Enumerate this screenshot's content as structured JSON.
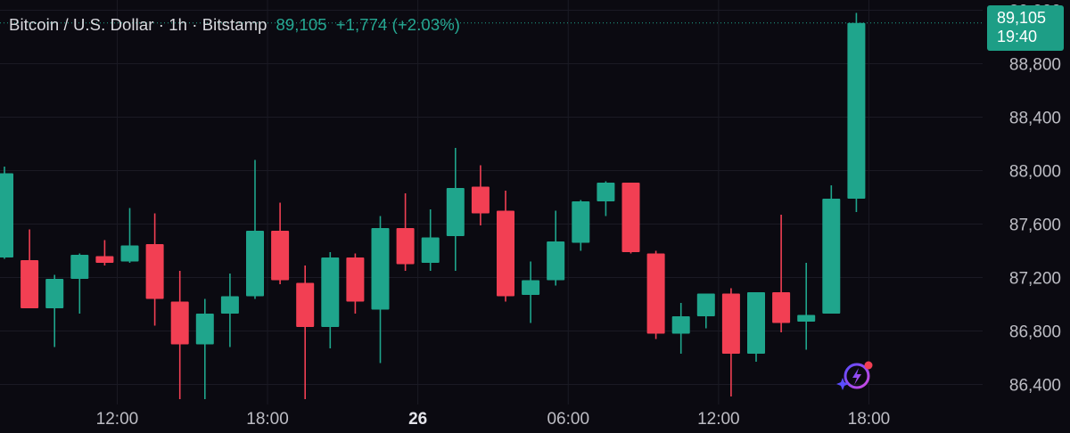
{
  "header": {
    "symbol": "Bitcoin / U.S. Dollar · 1h · Bitstamp",
    "last": "89,105",
    "change": "+1,774 (+2.03%)"
  },
  "price_tag": {
    "price": "89,105",
    "time": "19:40"
  },
  "colors": {
    "up": "#1fa58c",
    "down": "#f23f53",
    "grid": "#1b1a24",
    "text": "#bdbdc4",
    "background": "#0b0a11"
  },
  "chart_data": {
    "type": "candlestick",
    "title": "Bitcoin / U.S. Dollar · 1h · Bitstamp",
    "x_ticks": [
      {
        "index": 4.5,
        "label": "12:00",
        "bold": false
      },
      {
        "index": 10.5,
        "label": "18:00",
        "bold": false
      },
      {
        "index": 16.5,
        "label": "26",
        "bold": true
      },
      {
        "index": 22.5,
        "label": "06:00",
        "bold": false
      },
      {
        "index": 28.5,
        "label": "12:00",
        "bold": false
      },
      {
        "index": 34.5,
        "label": "18:00",
        "bold": false
      }
    ],
    "y_ticks": [
      86400,
      86800,
      87200,
      87600,
      88000,
      88400,
      88800,
      89200
    ],
    "y_tick_labels": [
      "86,400",
      "86,800",
      "87,200",
      "87,600",
      "88,000",
      "88,400",
      "88,800",
      "89,200"
    ],
    "ylim": [
      86250,
      89250
    ],
    "candles": [
      {
        "o": 87350,
        "h": 88030,
        "l": 87340,
        "c": 87980
      },
      {
        "o": 87330,
        "h": 87560,
        "l": 86980,
        "c": 86970
      },
      {
        "o": 86970,
        "h": 87220,
        "l": 86680,
        "c": 87190
      },
      {
        "o": 87190,
        "h": 87380,
        "l": 86930,
        "c": 87370
      },
      {
        "o": 87360,
        "h": 87480,
        "l": 87290,
        "c": 87310
      },
      {
        "o": 87320,
        "h": 87720,
        "l": 87310,
        "c": 87440
      },
      {
        "o": 87450,
        "h": 87680,
        "l": 86840,
        "c": 87040
      },
      {
        "o": 87020,
        "h": 87250,
        "l": 86290,
        "c": 86700
      },
      {
        "o": 86700,
        "h": 87040,
        "l": 86290,
        "c": 86930
      },
      {
        "o": 86930,
        "h": 87230,
        "l": 86680,
        "c": 87060
      },
      {
        "o": 87060,
        "h": 88080,
        "l": 87040,
        "c": 87550
      },
      {
        "o": 87550,
        "h": 87760,
        "l": 87150,
        "c": 87180
      },
      {
        "o": 87160,
        "h": 87290,
        "l": 86290,
        "c": 86830
      },
      {
        "o": 86830,
        "h": 87390,
        "l": 86670,
        "c": 87350
      },
      {
        "o": 87350,
        "h": 87380,
        "l": 86930,
        "c": 87020
      },
      {
        "o": 86960,
        "h": 87660,
        "l": 86560,
        "c": 87570
      },
      {
        "o": 87570,
        "h": 87830,
        "l": 87250,
        "c": 87300
      },
      {
        "o": 87310,
        "h": 87710,
        "l": 87250,
        "c": 87500
      },
      {
        "o": 87510,
        "h": 88170,
        "l": 87250,
        "c": 87870
      },
      {
        "o": 87880,
        "h": 88040,
        "l": 87590,
        "c": 87680
      },
      {
        "o": 87700,
        "h": 87850,
        "l": 87020,
        "c": 87060
      },
      {
        "o": 87070,
        "h": 87320,
        "l": 86860,
        "c": 87180
      },
      {
        "o": 87180,
        "h": 87700,
        "l": 87140,
        "c": 87470
      },
      {
        "o": 87460,
        "h": 87780,
        "l": 87400,
        "c": 87770
      },
      {
        "o": 87770,
        "h": 87920,
        "l": 87660,
        "c": 87910
      },
      {
        "o": 87910,
        "h": 87910,
        "l": 87380,
        "c": 87390
      },
      {
        "o": 87380,
        "h": 87400,
        "l": 86740,
        "c": 86780
      },
      {
        "o": 86780,
        "h": 87010,
        "l": 86630,
        "c": 86910
      },
      {
        "o": 86910,
        "h": 87080,
        "l": 86820,
        "c": 87080
      },
      {
        "o": 87080,
        "h": 87120,
        "l": 86310,
        "c": 86630
      },
      {
        "o": 86630,
        "h": 87090,
        "l": 86570,
        "c": 87090
      },
      {
        "o": 87090,
        "h": 87670,
        "l": 86790,
        "c": 86860
      },
      {
        "o": 86870,
        "h": 87310,
        "l": 86660,
        "c": 86920
      },
      {
        "o": 86930,
        "h": 87890,
        "l": 86930,
        "c": 87790
      },
      {
        "o": 87790,
        "h": 89180,
        "l": 87690,
        "c": 89105
      }
    ]
  }
}
